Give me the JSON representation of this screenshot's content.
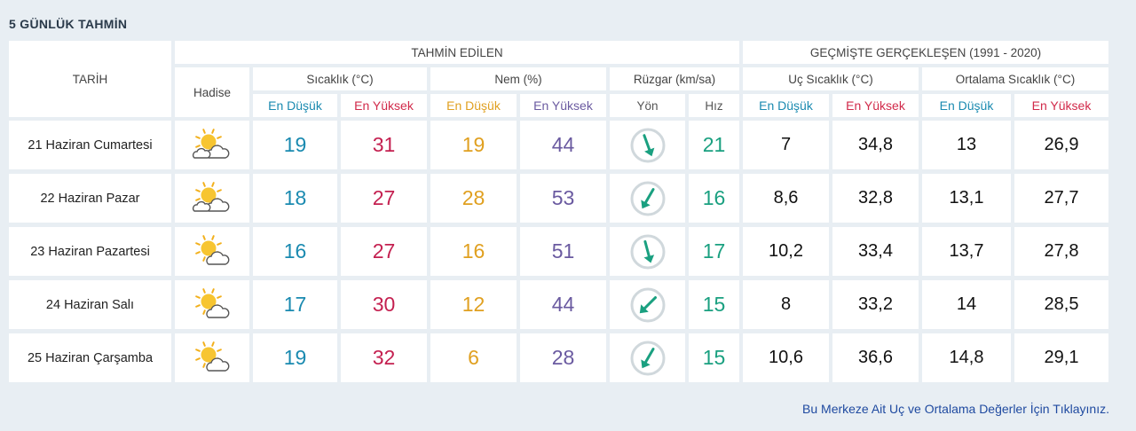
{
  "page_title": "5 GÜNLÜK TAHMİN",
  "headers": {
    "date": "TARİH",
    "predicted": "TAHMİN EDİLEN",
    "historical": "GEÇMİŞTE GERÇEKLEŞEN (1991 - 2020)",
    "event": "Hadise",
    "temperature": "Sıcaklık (°C)",
    "humidity": "Nem (%)",
    "wind": "Rüzgar (km/sa)",
    "extreme_temp": "Uç Sıcaklık (°C)",
    "avg_temp": "Ortalama Sıcaklık (°C)",
    "low": "En Düşük",
    "high": "En Yüksek",
    "direction": "Yön",
    "speed": "Hız"
  },
  "rows": [
    {
      "date": "21 Haziran Cumartesi",
      "icon": "partly-cloudy-icon",
      "t_low": "19",
      "t_high": "31",
      "h_low": "19",
      "h_high": "44",
      "wind_dir_deg": 160,
      "wind_speed": "21",
      "x_low": "7",
      "x_high": "34,8",
      "a_low": "13",
      "a_high": "26,9"
    },
    {
      "date": "22 Haziran Pazar",
      "icon": "partly-cloudy-icon",
      "t_low": "18",
      "t_high": "27",
      "h_low": "28",
      "h_high": "53",
      "wind_dir_deg": 210,
      "wind_speed": "16",
      "x_low": "8,6",
      "x_high": "32,8",
      "a_low": "13,1",
      "a_high": "27,7"
    },
    {
      "date": "23 Haziran Pazartesi",
      "icon": "sun-cloud-icon",
      "t_low": "16",
      "t_high": "27",
      "h_low": "16",
      "h_high": "51",
      "wind_dir_deg": 165,
      "wind_speed": "17",
      "x_low": "10,2",
      "x_high": "33,4",
      "a_low": "13,7",
      "a_high": "27,8"
    },
    {
      "date": "24 Haziran Salı",
      "icon": "sun-cloud-icon",
      "t_low": "17",
      "t_high": "30",
      "h_low": "12",
      "h_high": "44",
      "wind_dir_deg": 225,
      "wind_speed": "15",
      "x_low": "8",
      "x_high": "33,2",
      "a_low": "14",
      "a_high": "28,5"
    },
    {
      "date": "25 Haziran Çarşamba",
      "icon": "sun-cloud-icon",
      "t_low": "19",
      "t_high": "32",
      "h_low": "6",
      "h_high": "28",
      "wind_dir_deg": 210,
      "wind_speed": "15",
      "x_low": "10,6",
      "x_high": "36,6",
      "a_low": "14,8",
      "a_high": "29,1"
    }
  ],
  "footer_link": "Bu Merkeze Ait Uç ve Ortalama Değerler İçin Tıklayınız.",
  "colors": {
    "blue": "#1a8ab0",
    "red": "#c42050",
    "orange": "#e0a020",
    "purple": "#6a5aa0",
    "teal": "#1aa080",
    "link": "#1f4aa0"
  }
}
